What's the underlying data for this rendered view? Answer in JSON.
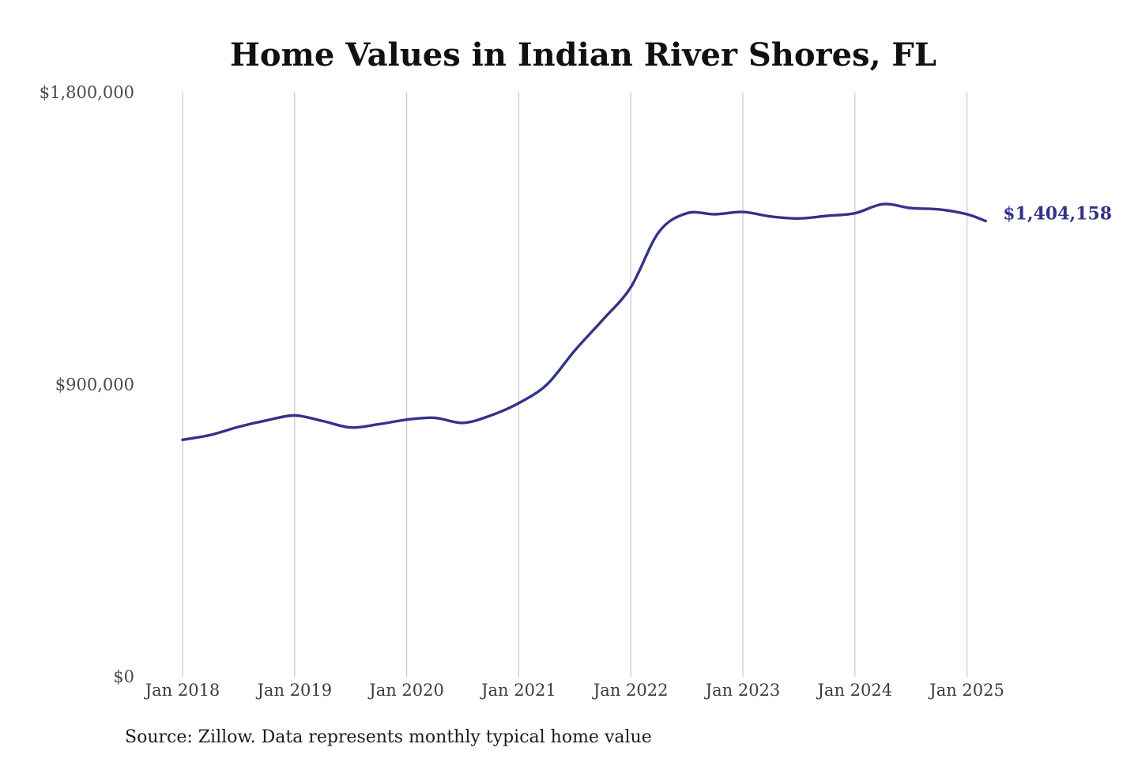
{
  "chart_data": {
    "type": "line",
    "title": "Home Values in Indian River Shores, FL",
    "source": "Source: Zillow. Data represents monthly typical home value",
    "ylim": [
      0,
      1800000
    ],
    "y_ticks": [
      {
        "value": 0,
        "label": "$0"
      },
      {
        "value": 900000,
        "label": "$900,000"
      },
      {
        "value": 1800000,
        "label": "$1,800,000"
      }
    ],
    "x_ticks": [
      {
        "value": "2018-01",
        "label": "Jan 2018"
      },
      {
        "value": "2019-01",
        "label": "Jan 2019"
      },
      {
        "value": "2020-01",
        "label": "Jan 2020"
      },
      {
        "value": "2021-01",
        "label": "Jan 2021"
      },
      {
        "value": "2022-01",
        "label": "Jan 2022"
      },
      {
        "value": "2023-01",
        "label": "Jan 2023"
      },
      {
        "value": "2024-01",
        "label": "Jan 2024"
      },
      {
        "value": "2025-01",
        "label": "Jan 2025"
      }
    ],
    "xlim": [
      "2018-01",
      "2025-03"
    ],
    "grid": {
      "vertical": true,
      "horizontal": false
    },
    "line_color": "#33338a",
    "end_label": "$1,404,158",
    "series": [
      {
        "x": [
          "2018-01",
          "2018-04",
          "2018-07",
          "2018-10",
          "2019-01",
          "2019-04",
          "2019-07",
          "2019-10",
          "2020-01",
          "2020-04",
          "2020-07",
          "2020-10",
          "2021-01",
          "2021-04",
          "2021-07",
          "2021-10",
          "2022-01",
          "2022-04",
          "2022-07",
          "2022-10",
          "2023-01",
          "2023-04",
          "2023-07",
          "2023-10",
          "2024-01",
          "2024-04",
          "2024-07",
          "2024-10",
          "2025-01",
          "2025-03"
        ],
        "values": [
          730000,
          745000,
          770000,
          790000,
          805000,
          788000,
          768000,
          778000,
          792000,
          798000,
          782000,
          805000,
          843000,
          900000,
          1005000,
          1100000,
          1200000,
          1370000,
          1428000,
          1425000,
          1432000,
          1418000,
          1412000,
          1420000,
          1428000,
          1456000,
          1444000,
          1440000,
          1425000,
          1404158
        ]
      }
    ]
  }
}
